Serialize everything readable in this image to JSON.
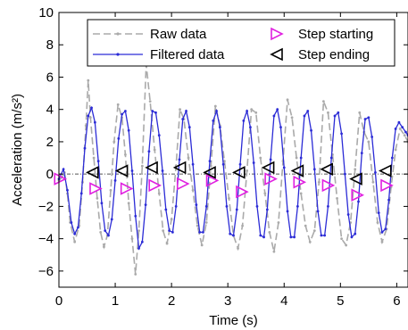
{
  "chart_data": {
    "type": "line",
    "title": "",
    "xlabel": "Time (s)",
    "ylabel": "Acceleration (m/s²)",
    "xlim": [
      0,
      6.2
    ],
    "ylim": [
      -7,
      10
    ],
    "xticks": [
      0,
      1,
      2,
      3,
      4,
      5,
      6
    ],
    "yticks": [
      -6,
      -4,
      -2,
      0,
      2,
      4,
      6,
      8,
      10
    ],
    "grid": false,
    "legend_position": "top-right",
    "series": [
      {
        "name": "Raw data",
        "style": "dashed-gray-dots",
        "color": "#aaaaaa",
        "x": [
          0,
          0.05,
          0.1,
          0.15,
          0.2,
          0.28,
          0.36,
          0.42,
          0.48,
          0.52,
          0.56,
          0.62,
          0.68,
          0.74,
          0.8,
          0.86,
          0.92,
          0.98,
          1.05,
          1.12,
          1.18,
          1.24,
          1.3,
          1.36,
          1.42,
          1.48,
          1.55,
          1.62,
          1.7,
          1.78,
          1.85,
          1.92,
          2.0,
          2.08,
          2.15,
          2.22,
          2.3,
          2.38,
          2.46,
          2.54,
          2.62,
          2.7,
          2.78,
          2.86,
          2.94,
          3.02,
          3.1,
          3.18,
          3.26,
          3.34,
          3.42,
          3.5,
          3.58,
          3.66,
          3.74,
          3.82,
          3.9,
          3.98,
          4.06,
          4.14,
          4.22,
          4.3,
          4.38,
          4.46,
          4.54,
          4.62,
          4.7,
          4.78,
          4.86,
          4.94,
          5.02,
          5.1,
          5.18,
          5.26,
          5.34,
          5.42,
          5.5,
          5.58,
          5.66,
          5.74,
          5.82,
          5.9,
          5.98,
          6.06,
          6.14,
          6.2
        ],
        "y": [
          -0.4,
          -0.2,
          0.1,
          -1.2,
          -3.0,
          -4.2,
          -3.2,
          -0.5,
          3.0,
          5.8,
          3.5,
          1.0,
          -1.5,
          -3.6,
          -4.5,
          -3.8,
          -1.0,
          2.0,
          4.3,
          3.5,
          1.2,
          -1.8,
          -4.0,
          -6.2,
          -3.5,
          0.5,
          6.8,
          4.5,
          1.5,
          -1.2,
          -3.5,
          -4.3,
          -2.8,
          0.5,
          4.0,
          3.4,
          1.0,
          -1.0,
          -3.2,
          -4.4,
          -3.0,
          0.5,
          4.2,
          3.0,
          0.8,
          -1.5,
          -3.8,
          -4.6,
          -3.2,
          0.2,
          4.0,
          3.8,
          1.0,
          -1.2,
          -3.6,
          -4.8,
          -3.0,
          0.8,
          4.6,
          3.5,
          1.0,
          -1.2,
          -3.2,
          -4.2,
          -3.5,
          -0.5,
          4.5,
          3.8,
          1.2,
          -1.5,
          -4.0,
          -4.4,
          -3.0,
          0.3,
          3.8,
          2.6,
          2.0,
          -0.5,
          -3.0,
          -4.2,
          -3.4,
          -0.8,
          1.5,
          2.8,
          2.4,
          2.0
        ]
      },
      {
        "name": "Filtered data",
        "style": "solid-blue-dots",
        "color": "#2b2bd6",
        "x": [
          0,
          0.08,
          0.15,
          0.22,
          0.28,
          0.34,
          0.4,
          0.46,
          0.52,
          0.58,
          0.64,
          0.7,
          0.76,
          0.82,
          0.88,
          0.94,
          1.0,
          1.06,
          1.12,
          1.18,
          1.24,
          1.3,
          1.36,
          1.42,
          1.48,
          1.54,
          1.6,
          1.66,
          1.72,
          1.78,
          1.84,
          1.9,
          1.96,
          2.02,
          2.08,
          2.14,
          2.2,
          2.26,
          2.32,
          2.38,
          2.44,
          2.5,
          2.56,
          2.62,
          2.68,
          2.74,
          2.8,
          2.86,
          2.92,
          2.98,
          3.04,
          3.1,
          3.16,
          3.22,
          3.28,
          3.34,
          3.4,
          3.46,
          3.52,
          3.58,
          3.64,
          3.7,
          3.76,
          3.82,
          3.88,
          3.94,
          4.0,
          4.06,
          4.12,
          4.18,
          4.24,
          4.3,
          4.36,
          4.42,
          4.48,
          4.54,
          4.6,
          4.66,
          4.72,
          4.78,
          4.84,
          4.9,
          4.96,
          5.02,
          5.08,
          5.14,
          5.2,
          5.26,
          5.32,
          5.38,
          5.44,
          5.5,
          5.56,
          5.62,
          5.68,
          5.74,
          5.8,
          5.86,
          5.92,
          5.98,
          6.04,
          6.1,
          6.16,
          6.2
        ],
        "y": [
          -0.3,
          0.3,
          -1.0,
          -3.0,
          -3.7,
          -3.3,
          -1.2,
          1.6,
          3.6,
          4.1,
          3.2,
          0.8,
          -1.8,
          -3.5,
          -3.8,
          -2.8,
          -0.4,
          2.2,
          3.7,
          3.9,
          2.7,
          0.2,
          -2.6,
          -4.6,
          -4.2,
          -1.9,
          1.4,
          3.9,
          3.8,
          2.4,
          0.2,
          -2.2,
          -3.5,
          -3.6,
          -2.0,
          0.9,
          3.4,
          3.9,
          2.9,
          0.6,
          -1.9,
          -3.6,
          -3.6,
          -2.0,
          0.8,
          3.3,
          3.9,
          2.9,
          0.6,
          -2.0,
          -3.7,
          -3.8,
          -2.2,
          0.6,
          3.3,
          3.9,
          2.9,
          0.7,
          -2.0,
          -3.8,
          -3.9,
          -2.2,
          0.9,
          3.6,
          4.0,
          2.9,
          0.4,
          -2.3,
          -3.9,
          -3.9,
          -2.0,
          1.0,
          3.6,
          3.9,
          2.7,
          0.3,
          -2.3,
          -3.8,
          -3.8,
          -2.0,
          1.0,
          3.6,
          3.8,
          2.5,
          0.0,
          -2.5,
          -3.9,
          -3.7,
          -1.7,
          1.3,
          3.4,
          3.5,
          2.3,
          0.1,
          -2.4,
          -3.6,
          -3.4,
          -1.6,
          1.0,
          2.8,
          3.2,
          2.9,
          2.6,
          2.4
        ]
      }
    ],
    "markers": [
      {
        "name": "Step starting",
        "symbol": "triangle-right",
        "color": "#e020e0",
        "x": [
          0.02,
          0.65,
          1.2,
          1.7,
          2.2,
          2.72,
          3.25,
          3.76,
          4.27,
          4.78,
          5.3,
          5.82
        ],
        "y": [
          -0.3,
          -0.9,
          -0.9,
          -0.7,
          -0.6,
          -0.4,
          -1.1,
          -0.3,
          -0.5,
          -0.7,
          -1.3,
          -0.7
        ]
      },
      {
        "name": "Step ending",
        "symbol": "triangle-left",
        "color": "#000000",
        "x": [
          0.6,
          1.12,
          1.65,
          2.15,
          2.68,
          3.2,
          3.72,
          4.24,
          4.76,
          5.28,
          5.8
        ],
        "y": [
          0.1,
          0.2,
          0.4,
          0.4,
          0.1,
          0.1,
          0.4,
          0.2,
          0.3,
          -0.3,
          0.2
        ]
      }
    ]
  }
}
